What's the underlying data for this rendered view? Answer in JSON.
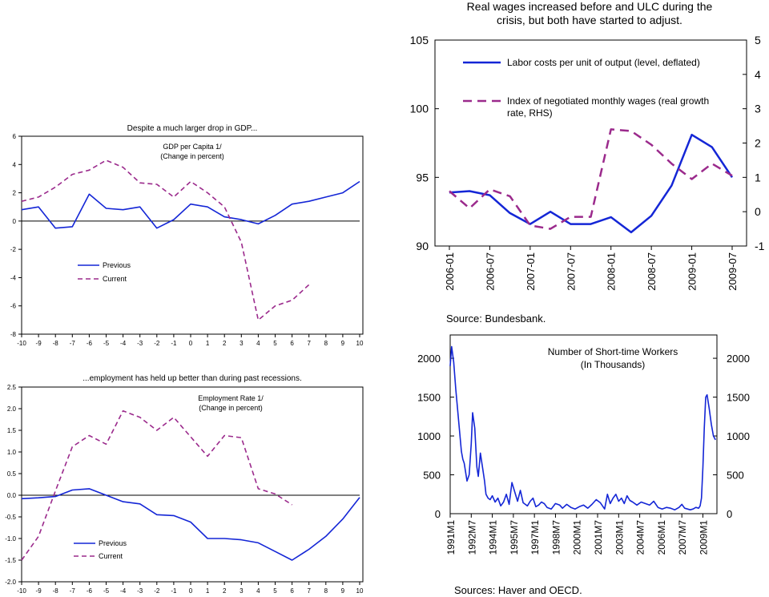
{
  "colors": {
    "blue": "#1426d6",
    "purple": "#9b2a8c",
    "axis": "#000000",
    "zero": "#000000"
  },
  "chart_data": [
    {
      "id": "gdp",
      "type": "line",
      "title": "Despite a much larger drop in GDP...",
      "inner_title": "GDP per Capita 1/",
      "inner_subtitle": "(Change in percent)",
      "x": [
        -10,
        -9,
        -8,
        -7,
        -6,
        -5,
        -4,
        -3,
        -2,
        -1,
        0,
        1,
        2,
        3,
        4,
        5,
        6,
        7,
        8,
        9,
        10
      ],
      "ylim": [
        -8,
        6
      ],
      "yticks": [
        "-8",
        "-6",
        "-4",
        "-2",
        "0",
        "2",
        "4",
        "6"
      ],
      "xticks": [
        "-10",
        "-9",
        "-8",
        "-7",
        "-6",
        "-5",
        "-4",
        "-3",
        "-2",
        "-1",
        "0",
        "1",
        "2",
        "3",
        "4",
        "5",
        "6",
        "7",
        "8",
        "9",
        "10"
      ],
      "legend": [
        "Previous",
        "Current"
      ],
      "series": [
        {
          "name": "Previous",
          "color_key": "blue",
          "x": [
            -10,
            -9,
            -8,
            -7,
            -6,
            -5,
            -4,
            -3,
            -2,
            -1,
            0,
            1,
            2,
            3,
            4,
            5,
            6,
            7,
            8,
            9,
            10
          ],
          "values": [
            0.8,
            1.0,
            -0.5,
            -0.4,
            1.9,
            0.9,
            0.8,
            1.0,
            -0.5,
            0.1,
            1.2,
            1.0,
            0.3,
            0.1,
            -0.2,
            0.4,
            1.2,
            1.4,
            1.7,
            2.0,
            2.8
          ]
        },
        {
          "name": "Current",
          "color_key": "purple",
          "x": [
            -10,
            -9,
            -8,
            -7,
            -6,
            -5,
            -4,
            -3,
            -2,
            -1,
            0,
            1,
            2,
            3,
            4,
            5,
            6,
            7
          ],
          "values": [
            1.4,
            1.7,
            2.4,
            3.3,
            3.6,
            4.3,
            3.8,
            2.7,
            2.6,
            1.7,
            2.8,
            2.0,
            1.0,
            -1.5,
            -7.0,
            -6.0,
            -5.6,
            -4.5
          ]
        }
      ]
    },
    {
      "id": "emp",
      "type": "line",
      "title": "...employment has held up better than during past recessions.",
      "inner_title": "Employment Rate 1/",
      "inner_subtitle": "(Change in percent)",
      "ylim": [
        -2.0,
        2.5
      ],
      "yticks": [
        "-2.0",
        "-1.5",
        "-1.0",
        "-0.5",
        "0.0",
        "0.5",
        "1.0",
        "1.5",
        "2.0",
        "2.5"
      ],
      "xticks": [
        "-10",
        "-9",
        "-8",
        "-7",
        "-6",
        "-5",
        "-4",
        "-3",
        "-2",
        "-1",
        "0",
        "1",
        "2",
        "3",
        "4",
        "5",
        "6",
        "7",
        "8",
        "9",
        "10"
      ],
      "legend": [
        "Previous",
        "Current"
      ],
      "series": [
        {
          "name": "Previous",
          "color_key": "blue",
          "x": [
            -10,
            -9,
            -8,
            -7,
            -6,
            -5,
            -4,
            -3,
            -2,
            -1,
            0,
            1,
            2,
            3,
            4,
            5,
            6,
            7,
            8,
            9,
            10
          ],
          "values": [
            -0.08,
            -0.06,
            -0.03,
            0.12,
            0.15,
            0.0,
            -0.15,
            -0.2,
            -0.45,
            -0.47,
            -0.62,
            -1.0,
            -1.0,
            -1.03,
            -1.1,
            -1.3,
            -1.5,
            -1.25,
            -0.95,
            -0.55,
            -0.05
          ]
        },
        {
          "name": "Current",
          "color_key": "purple",
          "x": [
            -10,
            -9,
            -8,
            -7,
            -6,
            -5,
            -4,
            -3,
            -2,
            -1,
            0,
            1,
            2,
            3,
            4,
            5,
            6
          ],
          "values": [
            -1.5,
            -0.95,
            0.1,
            1.12,
            1.38,
            1.18,
            1.95,
            1.8,
            1.5,
            1.8,
            1.35,
            0.9,
            1.38,
            1.33,
            0.15,
            0.03,
            -0.22
          ]
        }
      ]
    },
    {
      "id": "wages",
      "type": "line",
      "title_lines": [
        "Real wages increased before and ULC during the",
        "crisis, but both have started to adjust."
      ],
      "ylim": [
        90,
        105
      ],
      "ylim_right": [
        -1,
        5
      ],
      "yticks": [
        "90",
        "95",
        "100",
        "105"
      ],
      "yticks_right": [
        "-1",
        "0",
        "1",
        "2",
        "3",
        "4",
        "5"
      ],
      "categories": [
        "2006-01",
        "2006-04",
        "2006-07",
        "2006-10",
        "2007-01",
        "2007-04",
        "2007-07",
        "2007-10",
        "2008-01",
        "2008-04",
        "2008-07",
        "2008-10",
        "2009-01",
        "2009-04",
        "2009-07"
      ],
      "xticks": [
        "2006-01",
        "2006-07",
        "2007-01",
        "2007-07",
        "2008-01",
        "2008-07",
        "2009-01",
        "2009-07"
      ],
      "legend": [
        {
          "lines": [
            "Labor costs per unit of output (level, deflated)"
          ],
          "color_key": "blue"
        },
        {
          "lines": [
            "Index of negotiated monthly wages (real growth",
            "rate, RHS)"
          ],
          "color_key": "purple"
        }
      ],
      "series": [
        {
          "name": "Labor costs per unit of output (level, deflated)",
          "color_key": "blue",
          "axis": "left",
          "values": [
            93.9,
            94.0,
            93.7,
            92.4,
            91.6,
            92.5,
            91.6,
            91.6,
            92.1,
            91.0,
            92.2,
            94.4,
            98.1,
            97.2,
            95.0
          ]
        },
        {
          "name": "Index of negotiated monthly wages (real growth rate, RHS)",
          "color_key": "purple",
          "axis": "right",
          "values": [
            0.6,
            0.1,
            0.65,
            0.45,
            -0.4,
            -0.5,
            -0.15,
            -0.15,
            2.4,
            2.35,
            1.95,
            1.4,
            0.95,
            1.4,
            1.05
          ]
        }
      ],
      "source": "Source: Bundesbank."
    },
    {
      "id": "stw",
      "type": "line",
      "title_lines": [
        "Number of Short-time Workers",
        "(In Thousands)"
      ],
      "ylim": [
        0,
        2300
      ],
      "yticks": [
        "0",
        "500",
        "1000",
        "1500",
        "2000"
      ],
      "yticks_right": [
        "0",
        "500",
        "1000",
        "1500",
        "2000"
      ],
      "xticks": [
        "1991M1",
        "1992M7",
        "1994M1",
        "1995M7",
        "1997M1",
        "1998M7",
        "2000M1",
        "2001M7",
        "2003M1",
        "2004M7",
        "2006M1",
        "2007M7",
        "2009M1"
      ],
      "x_start_year": 1991,
      "x_end_year": 2010.0,
      "series": [
        {
          "name": "",
          "color_key": "blue",
          "x": [
            1991.0,
            1991.1,
            1991.25,
            1991.4,
            1991.6,
            1991.8,
            1991.9,
            1992.0,
            1992.2,
            1992.35,
            1992.5,
            1992.6,
            1992.75,
            1992.9,
            1993.0,
            1993.15,
            1993.3,
            1993.45,
            1993.55,
            1993.7,
            1993.85,
            1994.0,
            1994.2,
            1994.4,
            1994.6,
            1994.8,
            1995.0,
            1995.2,
            1995.4,
            1995.6,
            1995.8,
            1996.0,
            1996.2,
            1996.35,
            1996.5,
            1996.7,
            1996.9,
            1997.1,
            1997.3,
            1997.5,
            1997.7,
            1997.9,
            1998.2,
            1998.5,
            1998.8,
            1999.0,
            1999.3,
            1999.6,
            1999.9,
            2000.2,
            2000.5,
            2000.8,
            2001.1,
            2001.4,
            2001.7,
            2002.0,
            2002.2,
            2002.4,
            2002.6,
            2002.8,
            2003.0,
            2003.2,
            2003.4,
            2003.6,
            2003.8,
            2004.0,
            2004.3,
            2004.6,
            2004.9,
            2005.2,
            2005.5,
            2005.8,
            2006.1,
            2006.4,
            2006.7,
            2007.0,
            2007.3,
            2007.5,
            2007.7,
            2007.9,
            2008.1,
            2008.3,
            2008.5,
            2008.7,
            2008.8,
            2008.9,
            2009.0,
            2009.1,
            2009.2,
            2009.3,
            2009.45,
            2009.6,
            2009.75,
            2009.9
          ],
          "values": [
            1900,
            2150,
            1950,
            1600,
            1200,
            800,
            700,
            650,
            420,
            500,
            900,
            1300,
            1100,
            600,
            480,
            780,
            600,
            420,
            250,
            200,
            180,
            230,
            150,
            200,
            100,
            150,
            250,
            120,
            400,
            280,
            160,
            300,
            140,
            120,
            100,
            160,
            200,
            90,
            110,
            150,
            130,
            80,
            60,
            130,
            110,
            70,
            120,
            80,
            60,
            90,
            110,
            70,
            120,
            180,
            140,
            60,
            250,
            130,
            200,
            250,
            160,
            200,
            130,
            230,
            170,
            150,
            110,
            150,
            130,
            110,
            160,
            80,
            60,
            80,
            70,
            50,
            80,
            120,
            70,
            60,
            50,
            60,
            80,
            70,
            100,
            200,
            600,
            1100,
            1500,
            1530,
            1350,
            1150,
            1000,
            950
          ]
        }
      ],
      "source": "Sources: Haver and OECD."
    }
  ]
}
